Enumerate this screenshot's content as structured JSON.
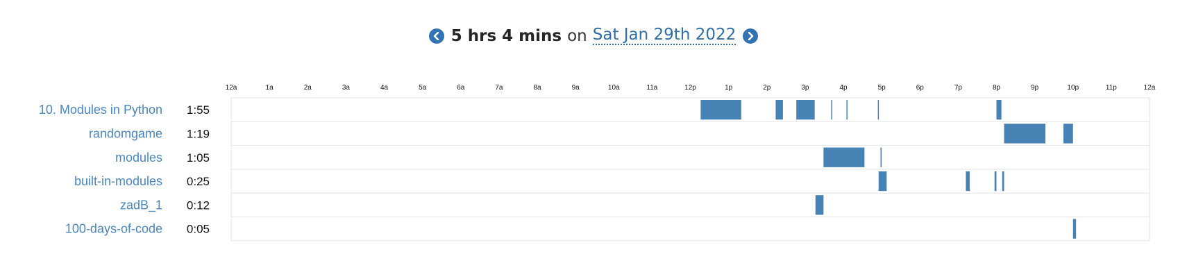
{
  "header": {
    "total_time": "5 hrs 4 mins",
    "on_word": "on",
    "date": "Sat Jan 29th 2022",
    "prev_icon": "chevron-left-circle-icon",
    "next_icon": "chevron-right-circle-icon"
  },
  "colors": {
    "bar": "#4682b4",
    "label": "#4a87c0",
    "grid": "#e4e4e4"
  },
  "chart_data": {
    "type": "timeline",
    "x_unit": "hour of day",
    "xlim": [
      0,
      24
    ],
    "ticks": [
      "12a",
      "1a",
      "2a",
      "3a",
      "4a",
      "5a",
      "6a",
      "7a",
      "8a",
      "9a",
      "10a",
      "11a",
      "12p",
      "1p",
      "2p",
      "3p",
      "4p",
      "5p",
      "6p",
      "7p",
      "8p",
      "9p",
      "10p",
      "11p",
      "12a"
    ],
    "rows": [
      {
        "name": "10. Modules in Python",
        "total": "1:55",
        "segments": [
          [
            12.27,
            13.33
          ],
          [
            14.23,
            14.42
          ],
          [
            14.77,
            15.25
          ],
          [
            15.68,
            15.7
          ],
          [
            16.08,
            16.1
          ],
          [
            16.9,
            16.92
          ],
          [
            20.0,
            20.13
          ]
        ]
      },
      {
        "name": "randomgame",
        "total": "1:19",
        "segments": [
          [
            20.2,
            21.28
          ],
          [
            21.75,
            22.0
          ]
        ]
      },
      {
        "name": "modules",
        "total": "1:05",
        "segments": [
          [
            15.48,
            16.55
          ],
          [
            16.97,
            17.0
          ]
        ]
      },
      {
        "name": "built-in-modules",
        "total": "0:25",
        "segments": [
          [
            16.92,
            17.13
          ],
          [
            19.2,
            19.3
          ],
          [
            19.95,
            20.0
          ],
          [
            20.15,
            20.2
          ]
        ]
      },
      {
        "name": "zadB_1",
        "total": "0:12",
        "segments": [
          [
            15.27,
            15.48
          ]
        ]
      },
      {
        "name": "100-days-of-code",
        "total": "0:05",
        "segments": [
          [
            22.0,
            22.08
          ]
        ]
      }
    ]
  }
}
